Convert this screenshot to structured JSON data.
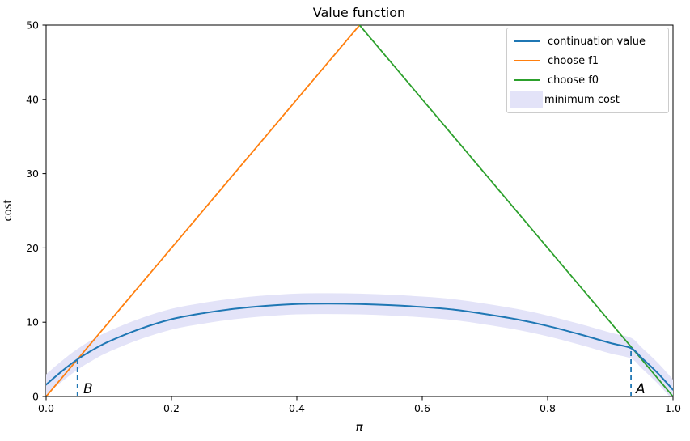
{
  "chart_data": {
    "type": "line",
    "title": "Value function",
    "xlabel": "π",
    "ylabel": "cost",
    "xlim": [
      0.0,
      1.0
    ],
    "ylim": [
      0,
      50
    ],
    "xticks": [
      0.0,
      0.2,
      0.4,
      0.6,
      0.8,
      1.0
    ],
    "xtick_labels": [
      "0.0",
      "0.2",
      "0.4",
      "0.6",
      "0.8",
      "1.0"
    ],
    "yticks": [
      0,
      10,
      20,
      30,
      40,
      50
    ],
    "ytick_labels": [
      "0",
      "10",
      "20",
      "30",
      "40",
      "50"
    ],
    "grid": false,
    "legend_position": "upper right",
    "series": [
      {
        "name": "continuation value",
        "type": "line",
        "color": "#1f77b4",
        "points": [
          [
            0.0,
            1.6
          ],
          [
            0.025,
            3.4
          ],
          [
            0.05,
            5.0
          ],
          [
            0.075,
            6.3
          ],
          [
            0.1,
            7.4
          ],
          [
            0.15,
            9.1
          ],
          [
            0.2,
            10.4
          ],
          [
            0.25,
            11.2
          ],
          [
            0.3,
            11.8
          ],
          [
            0.35,
            12.2
          ],
          [
            0.4,
            12.45
          ],
          [
            0.45,
            12.5
          ],
          [
            0.5,
            12.45
          ],
          [
            0.55,
            12.3
          ],
          [
            0.6,
            12.05
          ],
          [
            0.65,
            11.7
          ],
          [
            0.7,
            11.1
          ],
          [
            0.75,
            10.4
          ],
          [
            0.8,
            9.5
          ],
          [
            0.85,
            8.4
          ],
          [
            0.9,
            7.2
          ],
          [
            0.933,
            6.5
          ],
          [
            0.95,
            5.2
          ],
          [
            0.975,
            3.2
          ],
          [
            1.0,
            0.9
          ]
        ]
      },
      {
        "name": "choose f1",
        "type": "line",
        "color": "#ff7f0e",
        "points": [
          [
            0.0,
            0.0
          ],
          [
            0.5,
            50.0
          ]
        ]
      },
      {
        "name": "choose f0",
        "type": "line",
        "color": "#2ca02c",
        "points": [
          [
            0.5,
            50.0
          ],
          [
            1.0,
            0.0
          ]
        ]
      },
      {
        "name": "minimum cost",
        "type": "band",
        "color": "#e3e3f8",
        "follows": "continuation value",
        "halfwidth": 1.4
      }
    ],
    "annotations": [
      {
        "label": "B",
        "x": 0.05,
        "line_bottom": 0.0,
        "line_top": 5.0
      },
      {
        "label": "A",
        "x": 0.933,
        "line_bottom": 0.0,
        "line_top": 6.5
      }
    ],
    "annotation_line_color": "#1f77b4"
  },
  "legend": {
    "items": [
      {
        "label": "continuation value",
        "color": "#1f77b4",
        "swatch": "line"
      },
      {
        "label": "choose f1",
        "color": "#ff7f0e",
        "swatch": "line"
      },
      {
        "label": "choose f0",
        "color": "#2ca02c",
        "swatch": "line"
      },
      {
        "label": "minimum cost",
        "color": "#e3e3f8",
        "swatch": "patch"
      }
    ]
  }
}
